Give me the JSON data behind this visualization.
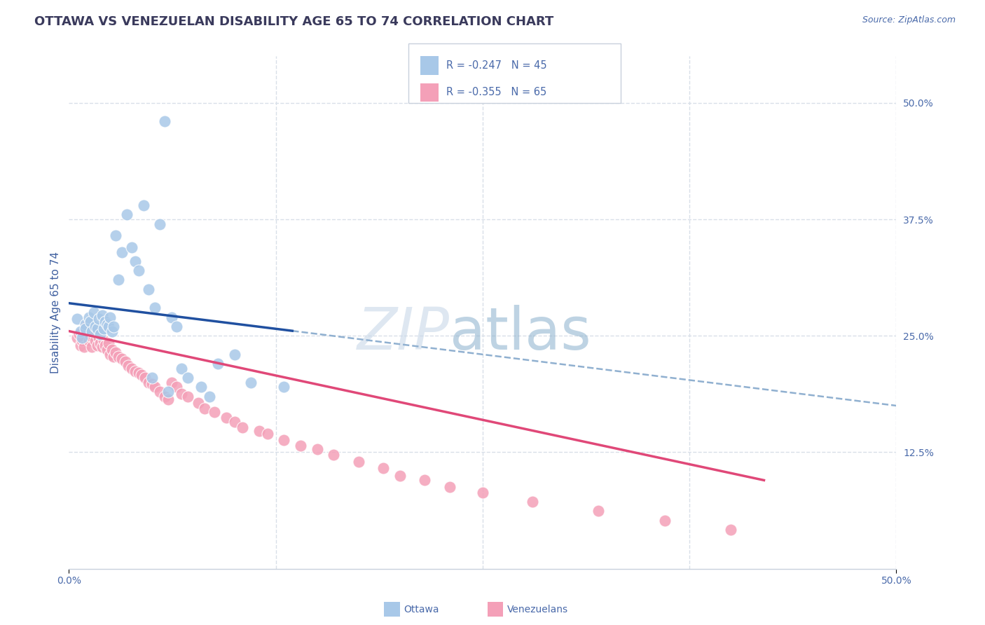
{
  "title": "OTTAWA VS VENEZUELAN DISABILITY AGE 65 TO 74 CORRELATION CHART",
  "source": "Source: ZipAtlas.com",
  "ylabel": "Disability Age 65 to 74",
  "xlim": [
    0.0,
    0.5
  ],
  "ylim": [
    0.0,
    0.55
  ],
  "ytick_right_values": [
    0.125,
    0.25,
    0.375,
    0.5
  ],
  "ytick_right_labels": [
    "12.5%",
    "25.0%",
    "37.5%",
    "50.0%"
  ],
  "ottawa_color": "#a8c8e8",
  "venezuelan_color": "#f4a0b8",
  "trendline_ottawa_color": "#2050a0",
  "trendline_venezuelan_color": "#e04878",
  "trendline_dashed_color": "#90b0d0",
  "background_color": "#ffffff",
  "grid_color": "#d8dfe8",
  "title_color": "#3a3a5c",
  "axis_label_color": "#4060a0",
  "tick_color": "#4a6aaa",
  "watermark_zip_color": "#c8d8e8",
  "watermark_atlas_color": "#8ab0cc",
  "ottawa_x": [
    0.005,
    0.007,
    0.008,
    0.01,
    0.01,
    0.012,
    0.013,
    0.014,
    0.015,
    0.016,
    0.017,
    0.018,
    0.019,
    0.02,
    0.021,
    0.022,
    0.023,
    0.024,
    0.025,
    0.026,
    0.027,
    0.028,
    0.03,
    0.032,
    0.035,
    0.038,
    0.04,
    0.042,
    0.045,
    0.048,
    0.052,
    0.055,
    0.058,
    0.062,
    0.065,
    0.068,
    0.072,
    0.08,
    0.085,
    0.09,
    0.1,
    0.11,
    0.13,
    0.05,
    0.06
  ],
  "ottawa_y": [
    0.268,
    0.255,
    0.248,
    0.262,
    0.258,
    0.27,
    0.265,
    0.255,
    0.275,
    0.26,
    0.258,
    0.268,
    0.252,
    0.272,
    0.258,
    0.265,
    0.262,
    0.26,
    0.27,
    0.255,
    0.26,
    0.358,
    0.31,
    0.34,
    0.38,
    0.345,
    0.33,
    0.32,
    0.39,
    0.3,
    0.28,
    0.37,
    0.48,
    0.27,
    0.26,
    0.215,
    0.205,
    0.195,
    0.185,
    0.22,
    0.23,
    0.2,
    0.195,
    0.205,
    0.19
  ],
  "venezuelan_x": [
    0.005,
    0.006,
    0.007,
    0.008,
    0.009,
    0.01,
    0.011,
    0.012,
    0.013,
    0.014,
    0.015,
    0.016,
    0.017,
    0.018,
    0.019,
    0.02,
    0.021,
    0.022,
    0.023,
    0.024,
    0.025,
    0.026,
    0.027,
    0.028,
    0.03,
    0.032,
    0.034,
    0.036,
    0.038,
    0.04,
    0.042,
    0.044,
    0.046,
    0.048,
    0.05,
    0.052,
    0.055,
    0.058,
    0.06,
    0.062,
    0.065,
    0.068,
    0.072,
    0.078,
    0.082,
    0.088,
    0.095,
    0.1,
    0.105,
    0.115,
    0.12,
    0.13,
    0.14,
    0.15,
    0.16,
    0.175,
    0.19,
    0.2,
    0.215,
    0.23,
    0.25,
    0.28,
    0.32,
    0.36,
    0.4
  ],
  "venezuelan_y": [
    0.248,
    0.252,
    0.24,
    0.245,
    0.238,
    0.26,
    0.255,
    0.245,
    0.25,
    0.238,
    0.255,
    0.245,
    0.24,
    0.248,
    0.242,
    0.238,
    0.245,
    0.24,
    0.235,
    0.242,
    0.23,
    0.235,
    0.228,
    0.232,
    0.228,
    0.225,
    0.222,
    0.218,
    0.215,
    0.212,
    0.21,
    0.208,
    0.205,
    0.2,
    0.198,
    0.195,
    0.19,
    0.185,
    0.182,
    0.2,
    0.195,
    0.188,
    0.185,
    0.178,
    0.172,
    0.168,
    0.162,
    0.158,
    0.152,
    0.148,
    0.145,
    0.138,
    0.132,
    0.128,
    0.122,
    0.115,
    0.108,
    0.1,
    0.095,
    0.088,
    0.082,
    0.072,
    0.062,
    0.052,
    0.042
  ],
  "ottawa_trendline_x0": 0.0,
  "ottawa_trendline_x1": 0.5,
  "ottawa_trendline_y0": 0.285,
  "ottawa_trendline_y1": 0.175,
  "venezuelan_trendline_x0": 0.0,
  "venezuelan_trendline_x1": 0.42,
  "venezuelan_trendline_y0": 0.255,
  "venezuelan_trendline_y1": 0.095
}
